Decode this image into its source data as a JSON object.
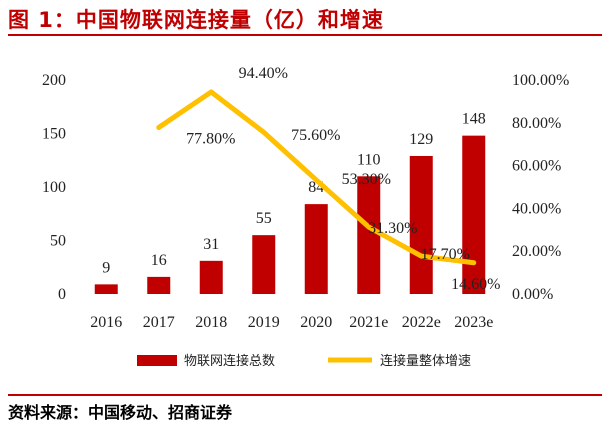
{
  "header": {
    "title": "图 1：中国物联网连接量（亿）和增速"
  },
  "footer": {
    "source": "资料来源：中国移动、招商证券"
  },
  "colors": {
    "bar": "#c00000",
    "line": "#ffc000",
    "accent": "#c00000"
  },
  "chart_data": {
    "type": "bar+line",
    "categories": [
      "2016",
      "2017",
      "2018",
      "2019",
      "2020",
      "2021e",
      "2022e",
      "2023e"
    ],
    "series": [
      {
        "name": "物联网连接总数",
        "type": "bar",
        "axis": "left",
        "values": [
          9,
          16,
          31,
          55,
          84,
          110,
          129,
          148
        ],
        "labels": [
          "9",
          "16",
          "31",
          "55",
          "84",
          "110",
          "129",
          "148"
        ]
      },
      {
        "name": "连接量整体增速",
        "type": "line",
        "axis": "right",
        "values": [
          null,
          77.8,
          94.4,
          75.6,
          53.3,
          31.3,
          17.7,
          14.6
        ],
        "labels": [
          "",
          "77.80%",
          "94.40%",
          "75.60%",
          "53.30%",
          "31.30%",
          "17.70%",
          "14.60%"
        ]
      }
    ],
    "y_left": {
      "min": 0,
      "max": 200,
      "ticks": [
        "0",
        "50",
        "100",
        "150",
        "200"
      ]
    },
    "y_right": {
      "min": 0,
      "max": 100,
      "ticks": [
        "0.00%",
        "20.00%",
        "40.00%",
        "60.00%",
        "80.00%",
        "100.00%"
      ]
    },
    "legend_position": "bottom",
    "grid": false
  }
}
